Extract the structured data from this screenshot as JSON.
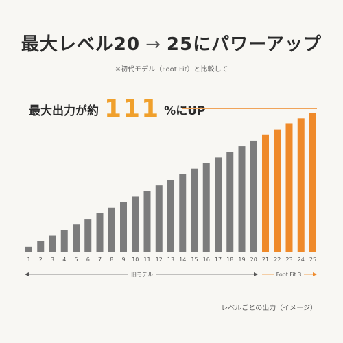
{
  "title": {
    "main": "最大レベル20",
    "arrow": "→",
    "target": "25にパワーアップ"
  },
  "subtitle": "※初代モデル（Foot Fit）と比較して",
  "claim": {
    "prefix": "最大出力が約",
    "number": "111",
    "suffix": "%にUP"
  },
  "caption": "レベルごとの出力（イメージ）",
  "legend": {
    "old_label": "旧モデル",
    "new_label": "Foot Fit 3"
  },
  "colors": {
    "old": "#7c7c7c",
    "new": "#ef8a2a",
    "accent": "#f0a02c"
  },
  "chart_data": {
    "type": "bar",
    "title": "",
    "xlabel": "",
    "ylabel": "",
    "categories": [
      "1",
      "2",
      "3",
      "4",
      "5",
      "6",
      "7",
      "8",
      "9",
      "10",
      "11",
      "12",
      "13",
      "14",
      "15",
      "16",
      "17",
      "18",
      "19",
      "20",
      "21",
      "22",
      "23",
      "24",
      "25"
    ],
    "series": [
      {
        "values": [
          1,
          2,
          3,
          4,
          5,
          6,
          7,
          8,
          9,
          10,
          11,
          12,
          13,
          14,
          15,
          16,
          17,
          18,
          19,
          20,
          null,
          null,
          null,
          null,
          null
        ]
      },
      {
        "values": [
          null,
          null,
          null,
          null,
          null,
          null,
          null,
          null,
          null,
          null,
          null,
          null,
          null,
          null,
          null,
          null,
          null,
          null,
          null,
          null,
          21,
          22,
          23,
          24,
          25
        ]
      }
    ],
    "ylim": [
      0,
      26
    ],
    "grid": false
  }
}
